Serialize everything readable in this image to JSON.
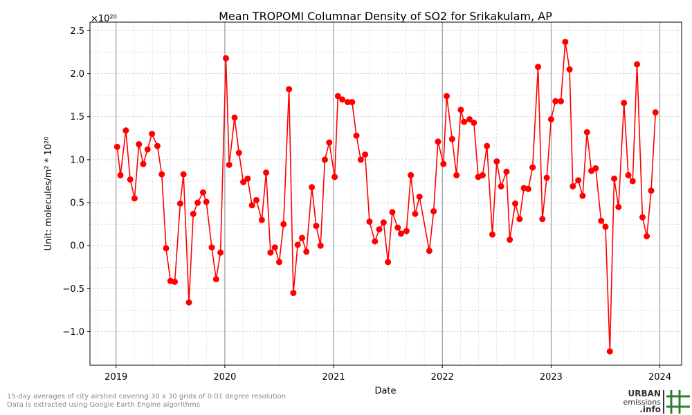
{
  "chart_data": {
    "type": "line",
    "title": "Mean TROPOMI Columnar Density of SO2 for Srikakulam, AP",
    "y_offset_label": "×10²⁰",
    "x_label": "Date",
    "y_label": "Unit: molecules/m² * 10²⁰",
    "xlim": [
      2018.76,
      2024.2
    ],
    "ylim": [
      -1.39,
      2.6
    ],
    "xticks": [
      2019,
      2020,
      2021,
      2022,
      2023,
      2024
    ],
    "yticks": [
      {
        "value": -1,
        "label": "−1.0"
      },
      {
        "value": -0.5,
        "label": "−0.5"
      },
      {
        "value": 0,
        "label": "0.0"
      },
      0.5,
      {
        "value": 1,
        "label": "1.0"
      },
      1.5,
      {
        "value": 2,
        "label": "2.0"
      },
      2.5
    ],
    "grid": true,
    "minor_grid": true,
    "series": [
      {
        "name": "SO2",
        "color": "#ff0000",
        "x": [
          2019.01,
          2019.04,
          2019.09,
          2019.13,
          2019.17,
          2019.21,
          2019.25,
          2019.29,
          2019.33,
          2019.38,
          2019.42,
          2019.46,
          2019.5,
          2019.54,
          2019.59,
          2019.62,
          2019.67,
          2019.71,
          2019.75,
          2019.8,
          2019.83,
          2019.88,
          2019.92,
          2019.96,
          2020.01,
          2020.04,
          2020.09,
          2020.13,
          2020.17,
          2020.21,
          2020.25,
          2020.29,
          2020.34,
          2020.38,
          2020.42,
          2020.46,
          2020.5,
          2020.54,
          2020.59,
          2020.63,
          2020.67,
          2020.71,
          2020.75,
          2020.8,
          2020.84,
          2020.88,
          2020.92,
          2020.96,
          2021.01,
          2021.04,
          2021.08,
          2021.13,
          2021.17,
          2021.21,
          2021.25,
          2021.29,
          2021.33,
          2021.38,
          2021.42,
          2021.46,
          2021.5,
          2021.54,
          2021.59,
          2021.62,
          2021.67,
          2021.71,
          2021.75,
          2021.79,
          2021.88,
          2021.92,
          2021.96,
          2022.01,
          2022.04,
          2022.09,
          2022.13,
          2022.17,
          2022.2,
          2022.25,
          2022.29,
          2022.33,
          2022.37,
          2022.41,
          2022.46,
          2022.5,
          2022.54,
          2022.59,
          2022.62,
          2022.67,
          2022.71,
          2022.75,
          2022.79,
          2022.83,
          2022.88,
          2022.92,
          2022.96,
          2023.0,
          2023.04,
          2023.09,
          2023.13,
          2023.17,
          2023.2,
          2023.25,
          2023.29,
          2023.33,
          2023.37,
          2023.41,
          2023.46,
          2023.5,
          2023.54,
          2023.58,
          2023.62,
          2023.67,
          2023.71,
          2023.75,
          2023.79,
          2023.84,
          2023.88,
          2023.92,
          2023.96
        ],
        "values": [
          1.15,
          0.82,
          1.34,
          0.77,
          0.55,
          1.18,
          0.95,
          1.12,
          1.3,
          1.16,
          0.83,
          -0.03,
          -0.41,
          -0.42,
          0.49,
          0.83,
          -0.66,
          0.37,
          0.5,
          0.62,
          0.51,
          -0.02,
          -0.39,
          -0.08,
          2.18,
          0.94,
          1.49,
          1.08,
          0.74,
          0.78,
          0.47,
          0.53,
          0.3,
          0.85,
          -0.08,
          -0.02,
          -0.19,
          0.25,
          1.82,
          -0.55,
          0.01,
          0.09,
          -0.07,
          0.68,
          0.23,
          0.0,
          1.0,
          1.2,
          0.8,
          1.74,
          1.7,
          1.67,
          1.67,
          1.28,
          1.0,
          1.06,
          0.28,
          0.05,
          0.19,
          0.27,
          -0.19,
          0.39,
          0.21,
          0.14,
          0.17,
          0.82,
          0.37,
          0.57,
          -0.06,
          0.4,
          1.21,
          0.95,
          1.74,
          1.24,
          0.82,
          1.58,
          1.44,
          1.47,
          1.43,
          0.8,
          0.82,
          1.16,
          0.13,
          0.98,
          0.69,
          0.86,
          0.07,
          0.49,
          0.31,
          0.67,
          0.66,
          0.91,
          2.08,
          0.31,
          0.79,
          1.47,
          1.68,
          1.68,
          2.37,
          2.05,
          0.69,
          0.76,
          0.58,
          1.32,
          0.87,
          0.9,
          0.29,
          0.22,
          -1.23,
          0.78,
          0.45,
          1.66,
          0.82,
          0.75,
          2.11,
          0.33,
          0.11,
          0.64,
          1.55
        ]
      }
    ],
    "footnote": [
      "15-day averages of city airshed covering 30 x 30 grids of 0.01 degree resolution",
      "Data is extracted using Google Earth Engine algorithms"
    ],
    "logo": [
      "URBAN",
      "emissions",
      ".info"
    ]
  }
}
